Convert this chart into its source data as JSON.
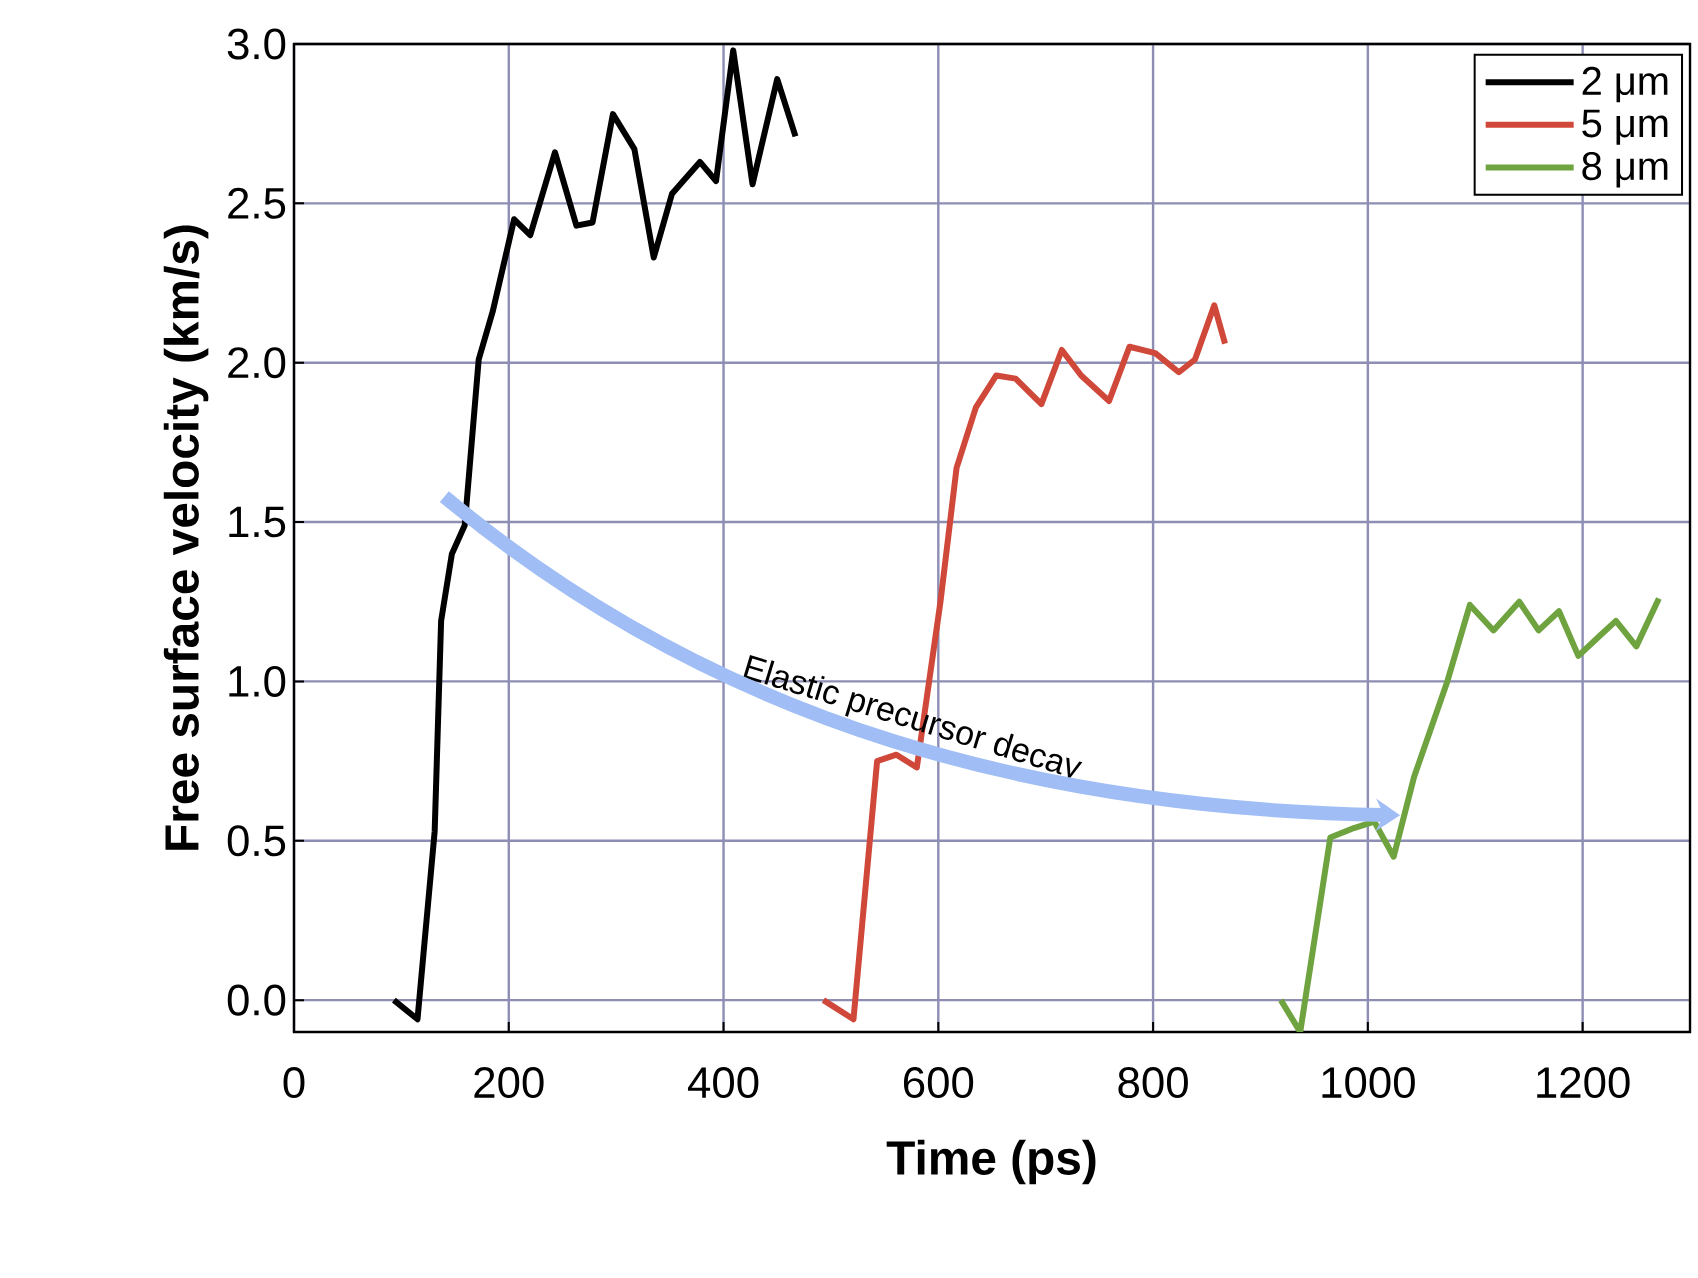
{
  "chart_data": {
    "type": "line",
    "xlabel": "Time (ps)",
    "ylabel": "Free surface velocity (km/s)",
    "annotations": [
      "Elastic  precursor decay"
    ],
    "xlim": [
      0,
      1300
    ],
    "ylim": [
      -0.1,
      3.0
    ],
    "xticks": [
      0,
      200,
      400,
      600,
      800,
      1000,
      1200
    ],
    "yticks": [
      {
        "value": 0,
        "label": "0.0"
      },
      {
        "value": 0.5,
        "label": "0.5"
      },
      {
        "value": 1.0,
        "label": "1.0"
      },
      {
        "value": 1.5,
        "label": "1.5"
      },
      {
        "value": 2.0,
        "label": "2.0"
      },
      {
        "value": 2.5,
        "label": "2.5"
      },
      {
        "value": 3.0,
        "label": "3.0"
      }
    ],
    "grid": true,
    "legend": "top right",
    "marker": "none",
    "line_style": "solid",
    "series": [
      {
        "name": "2 μm",
        "color": "#000000",
        "x": [
          93,
          115,
          131,
          137,
          147,
          159,
          172,
          185,
          205,
          220,
          243,
          263,
          278,
          297,
          317,
          335,
          352,
          378,
          393,
          409,
          427,
          450,
          467
        ],
        "values": [
          0.0,
          -0.06,
          0.53,
          1.19,
          1.4,
          1.49,
          2.01,
          2.16,
          2.45,
          2.4,
          2.66,
          2.43,
          2.44,
          2.78,
          2.67,
          2.33,
          2.53,
          2.63,
          2.57,
          2.98,
          2.56,
          2.89,
          2.71
        ]
      },
      {
        "name": "5 μm",
        "color": "#d0483a",
        "x": [
          493,
          521,
          543,
          561,
          580,
          602,
          617,
          635,
          654,
          672,
          696,
          715,
          733,
          759,
          778,
          802,
          824,
          839,
          857,
          867
        ],
        "values": [
          0.0,
          -0.06,
          0.75,
          0.77,
          0.73,
          1.25,
          1.67,
          1.86,
          1.96,
          1.95,
          1.87,
          2.04,
          1.96,
          1.88,
          2.05,
          2.03,
          1.97,
          2.01,
          2.18,
          2.06
        ]
      },
      {
        "name": "8 μm",
        "color": "#6ea33f",
        "x": [
          919,
          937,
          965,
          987,
          1006,
          1024,
          1043,
          1074,
          1095,
          1117,
          1141,
          1159,
          1178,
          1196,
          1215,
          1231,
          1250,
          1271
        ],
        "values": [
          0.0,
          -0.1,
          0.51,
          0.54,
          0.56,
          0.45,
          0.7,
          1.0,
          1.24,
          1.16,
          1.25,
          1.16,
          1.22,
          1.08,
          1.14,
          1.19,
          1.11,
          1.26
        ]
      }
    ]
  }
}
